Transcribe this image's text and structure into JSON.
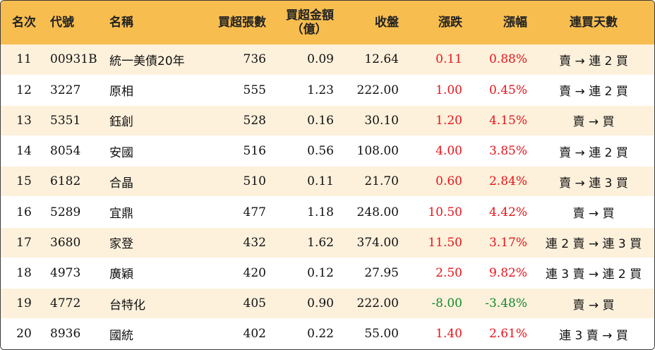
{
  "headers": {
    "rank": "名次",
    "code": "代號",
    "name": "名稱",
    "net_buy_lots": "買超張數",
    "net_buy_amount_line1": "買超金額",
    "net_buy_amount_line2": "（億）",
    "close": "收盤",
    "change": "漲跌",
    "change_pct": "漲幅",
    "streak": "連買天數"
  },
  "colors": {
    "up": "#e8141b",
    "down": "#12892b",
    "header": "#f7bd4f",
    "stripe": "#fdf1dc"
  },
  "rows": [
    {
      "rank": "11",
      "code": "00931B",
      "name": "統一美債20年",
      "lots": "736",
      "amount": "0.09",
      "close": "12.64",
      "change": "0.11",
      "pct": "0.88%",
      "streak": "賣 → 連 2 買",
      "dir": "up"
    },
    {
      "rank": "12",
      "code": "3227",
      "name": "原相",
      "lots": "555",
      "amount": "1.23",
      "close": "222.00",
      "change": "1.00",
      "pct": "0.45%",
      "streak": "賣 → 連 2 買",
      "dir": "up"
    },
    {
      "rank": "13",
      "code": "5351",
      "name": "鈺創",
      "lots": "528",
      "amount": "0.16",
      "close": "30.10",
      "change": "1.20",
      "pct": "4.15%",
      "streak": "賣 → 買",
      "dir": "up"
    },
    {
      "rank": "14",
      "code": "8054",
      "name": "安國",
      "lots": "516",
      "amount": "0.56",
      "close": "108.00",
      "change": "4.00",
      "pct": "3.85%",
      "streak": "賣 → 連 2 買",
      "dir": "up"
    },
    {
      "rank": "15",
      "code": "6182",
      "name": "合晶",
      "lots": "510",
      "amount": "0.11",
      "close": "21.70",
      "change": "0.60",
      "pct": "2.84%",
      "streak": "賣 → 連 3 買",
      "dir": "up"
    },
    {
      "rank": "16",
      "code": "5289",
      "name": "宜鼎",
      "lots": "477",
      "amount": "1.18",
      "close": "248.00",
      "change": "10.50",
      "pct": "4.42%",
      "streak": "賣 → 買",
      "dir": "up"
    },
    {
      "rank": "17",
      "code": "3680",
      "name": "家登",
      "lots": "432",
      "amount": "1.62",
      "close": "374.00",
      "change": "11.50",
      "pct": "3.17%",
      "streak": "連 2 賣 → 連 3 買",
      "dir": "up"
    },
    {
      "rank": "18",
      "code": "4973",
      "name": "廣穎",
      "lots": "420",
      "amount": "0.12",
      "close": "27.95",
      "change": "2.50",
      "pct": "9.82%",
      "streak": "連 3 賣 → 連 2 買",
      "dir": "up"
    },
    {
      "rank": "19",
      "code": "4772",
      "name": "台特化",
      "lots": "405",
      "amount": "0.90",
      "close": "222.00",
      "change": "-8.00",
      "pct": "-3.48%",
      "streak": "賣 → 買",
      "dir": "down"
    },
    {
      "rank": "20",
      "code": "8936",
      "name": "國統",
      "lots": "402",
      "amount": "0.22",
      "close": "55.00",
      "change": "1.40",
      "pct": "2.61%",
      "streak": "連 3 賣 → 買",
      "dir": "up"
    }
  ]
}
